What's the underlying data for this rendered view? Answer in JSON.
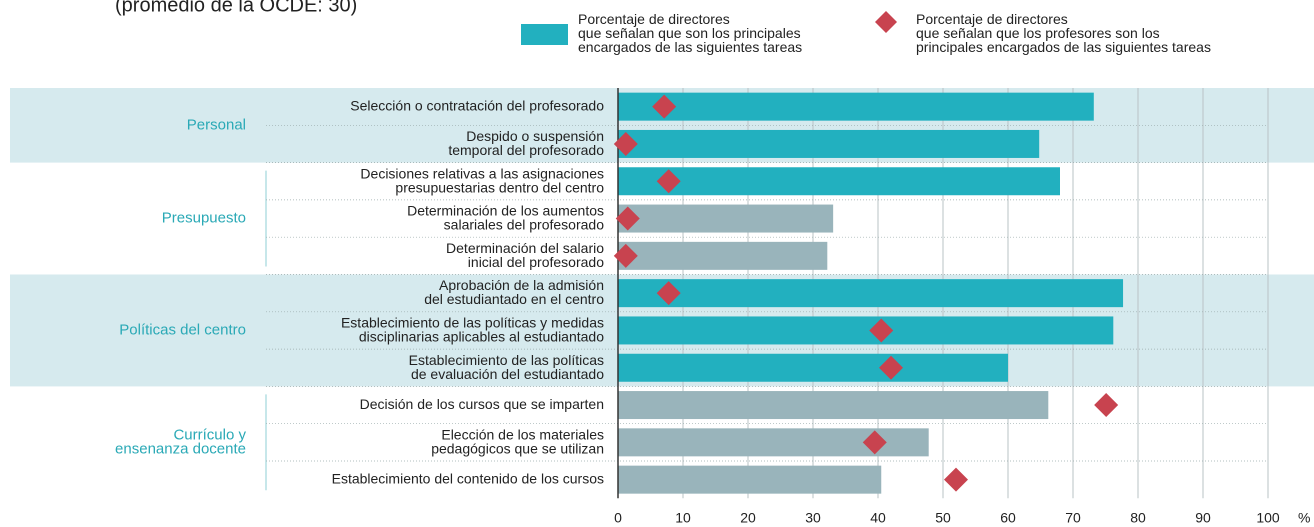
{
  "chart_data": {
    "type": "bar-dot",
    "subtitle": "(promedio de la OCDE: 30)",
    "groups": [
      {
        "name": "Personal",
        "shaded": true,
        "categories": [
          "Selección o contratación del profesorado",
          "Despido o suspensión\ntemporal del profesorado"
        ]
      },
      {
        "name": "Presupuesto",
        "shaded": false,
        "categories": [
          "Decisiones relativas a las asignaciones\npresupuestarias dentro del centro",
          "Determinación de los aumentos\nsalariales del profesorado",
          "Determinación del salario\ninicial del profesorado"
        ]
      },
      {
        "name": "Políticas del centro",
        "shaded": true,
        "categories": [
          "Aprobación de la admisión\ndel estudiantado en el centro",
          "Establecimiento de las políticas y medidas\ndisciplinarias aplicables al estudiantado",
          "Establecimiento de las políticas\nde evaluación del estudiantado"
        ]
      },
      {
        "name": "Currículo y\nensenanza docente",
        "shaded": false,
        "categories": [
          "Decisión de los cursos que se imparten",
          "Elección de los materiales\npedagógicos que se utilizan",
          "Establecimiento del contenido de los cursos"
        ]
      }
    ],
    "series": [
      {
        "name": "Porcentaje de directores\nque señalan que son los principales\nencargados de las siguientes tareas",
        "color": "#22b0bf",
        "colors": [
          "#22b0bf",
          "#22b0bf",
          "#22b0bf",
          "#99b4bb",
          "#99b4bb",
          "#22b0bf",
          "#22b0bf",
          "#22b0bf",
          "#99b4bb",
          "#99b4bb",
          "#99b4bb"
        ],
        "values": [
          73.2,
          64.8,
          68,
          33.1,
          32.2,
          77.7,
          76.2,
          60,
          66.2,
          47.8,
          40.5
        ]
      },
      {
        "name": "Porcentaje de directores\nque señalan que los profesores son los\nprincipales encargados de las siguientes tareas",
        "color": "#c8434f",
        "values": [
          7.1,
          1.2,
          7.8,
          1.5,
          1.2,
          7.8,
          40.5,
          42,
          75.1,
          39.5,
          52
        ]
      }
    ],
    "xlim": [
      0,
      100
    ],
    "xticks": [
      0,
      10,
      20,
      30,
      40,
      50,
      60,
      70,
      80,
      90,
      100
    ],
    "xunit": "%",
    "grid": true
  }
}
